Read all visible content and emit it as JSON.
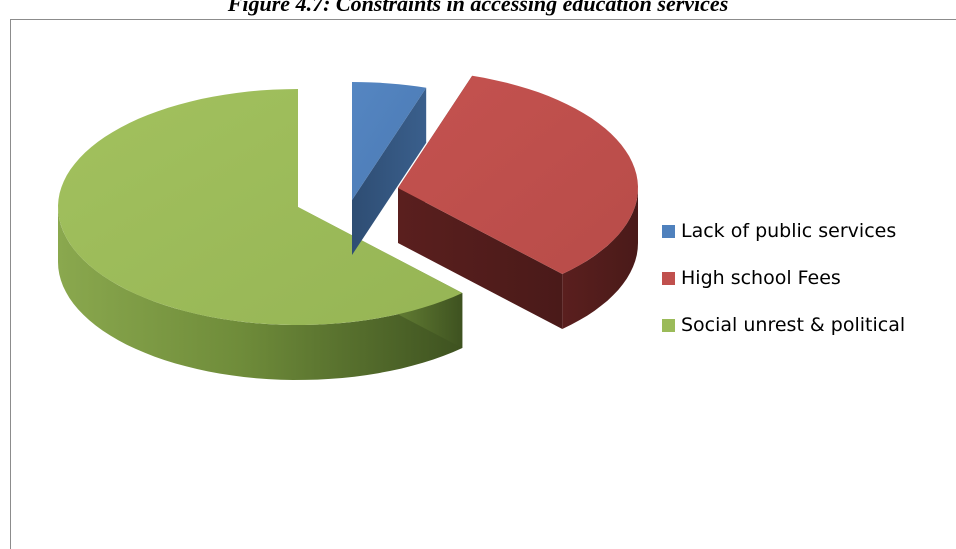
{
  "figure": {
    "caption": "Figure 4.7: Constraints in accessing education services"
  },
  "chart_data": {
    "type": "pie",
    "style": "3d-exploded",
    "categories": [
      "Lack of public services",
      "High school Fees",
      "Social unrest & political"
    ],
    "values": [
      5,
      33,
      62
    ],
    "value_unit": "percent (estimated from slice sizes)",
    "colors": [
      "#4f81bd",
      "#c0504d",
      "#9bbb59"
    ],
    "legend_position": "right",
    "title": "Figure 4.7: Constraints in accessing education services"
  }
}
